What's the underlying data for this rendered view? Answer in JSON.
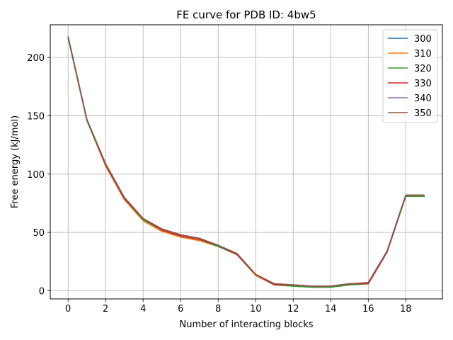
{
  "chart_data": {
    "type": "line",
    "title": "FE curve for PDB ID: 4bw5",
    "xlabel": "Number of interacting blocks",
    "ylabel": "Free energy (kJ/mol)",
    "xlim": [
      -0.95,
      19.95
    ],
    "ylim": [
      -7,
      228
    ],
    "xticks": [
      0,
      2,
      4,
      6,
      8,
      10,
      12,
      14,
      16,
      18
    ],
    "yticks": [
      0,
      50,
      100,
      150,
      200
    ],
    "grid": true,
    "legend_position": "top-right",
    "x": [
      0,
      1,
      2,
      3,
      4,
      5,
      6,
      7,
      8,
      9,
      10,
      11,
      12,
      13,
      14,
      15,
      16,
      17,
      18,
      19
    ],
    "series": [
      {
        "name": "300",
        "color": "#1f77b4",
        "values": [
          217,
          146,
          107,
          78,
          60,
          51,
          46,
          43,
          38,
          31,
          13,
          5,
          4,
          3,
          3,
          5,
          6,
          33,
          81,
          81
        ]
      },
      {
        "name": "310",
        "color": "#ff7f0e",
        "values": [
          217,
          146,
          107,
          78,
          60,
          51,
          46,
          43,
          38,
          31,
          13,
          5,
          4,
          3,
          3,
          5,
          6,
          33,
          81,
          81
        ]
      },
      {
        "name": "320",
        "color": "#2ca02c",
        "values": [
          217,
          146,
          108,
          79,
          61,
          52,
          47,
          44,
          38,
          31,
          14,
          5,
          4,
          3,
          3,
          5,
          6,
          33,
          81,
          81
        ]
      },
      {
        "name": "330",
        "color": "#d62728",
        "values": [
          218,
          147,
          108,
          79,
          62,
          52,
          47,
          44,
          39,
          31,
          14,
          5,
          5,
          4,
          4,
          6,
          6,
          33,
          82,
          82
        ]
      },
      {
        "name": "340",
        "color": "#9467bd",
        "values": [
          218,
          147,
          109,
          80,
          62,
          53,
          48,
          45,
          39,
          32,
          14,
          6,
          5,
          4,
          4,
          6,
          7,
          34,
          82,
          82
        ]
      },
      {
        "name": "350",
        "color": "#8c564b",
        "values": [
          218,
          147,
          109,
          80,
          62,
          53,
          48,
          45,
          39,
          32,
          14,
          6,
          5,
          4,
          4,
          6,
          7,
          34,
          82,
          82
        ]
      }
    ]
  }
}
